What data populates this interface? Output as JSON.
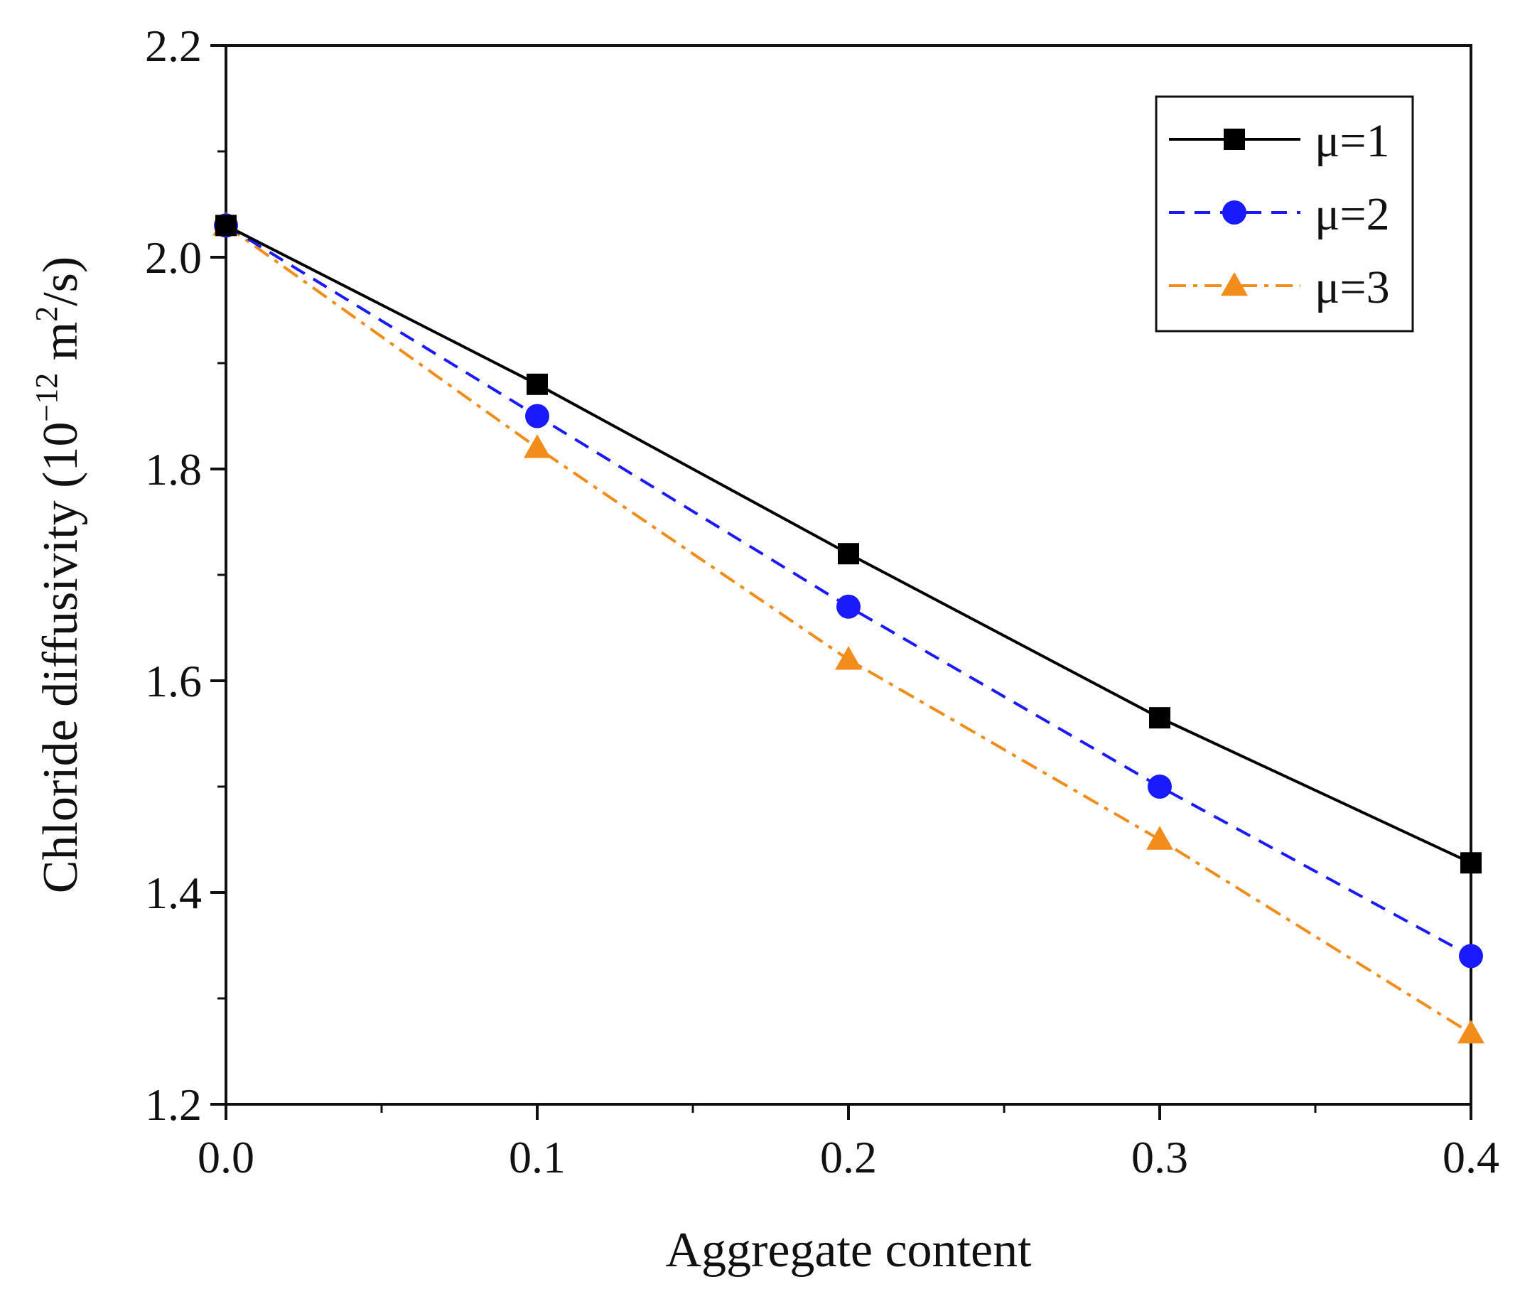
{
  "chart_data": {
    "type": "line",
    "title": "",
    "xlabel": "Aggregate content",
    "ylabel": {
      "prefix": "Chloride diffusivity (10",
      "exponent": "−12",
      "middle": " m",
      "unit_exponent": "2",
      "suffix": "/s)"
    },
    "x": [
      0.0,
      0.1,
      0.2,
      0.3,
      0.4
    ],
    "xlim": [
      0.0,
      0.4
    ],
    "ylim": [
      1.2,
      2.2
    ],
    "xticks": [
      "0.0",
      "0.1",
      "0.2",
      "0.3",
      "0.4"
    ],
    "yticks": [
      "1.2",
      "1.4",
      "1.6",
      "1.8",
      "2.0",
      "2.2"
    ],
    "grid": false,
    "legend_position": "top-right",
    "series": [
      {
        "name": "μ=1",
        "values": [
          2.03,
          1.88,
          1.72,
          1.565,
          1.428
        ],
        "color": "#000000",
        "marker": "square",
        "dash": "solid"
      },
      {
        "name": "μ=2",
        "values": [
          2.03,
          1.85,
          1.67,
          1.5,
          1.34
        ],
        "color": "#1a1aff",
        "marker": "circle",
        "dash": "dashed"
      },
      {
        "name": "μ=3",
        "values": [
          2.03,
          1.82,
          1.62,
          1.45,
          1.267
        ],
        "color": "#f28c1a",
        "marker": "triangle",
        "dash": "dashdot"
      }
    ]
  }
}
